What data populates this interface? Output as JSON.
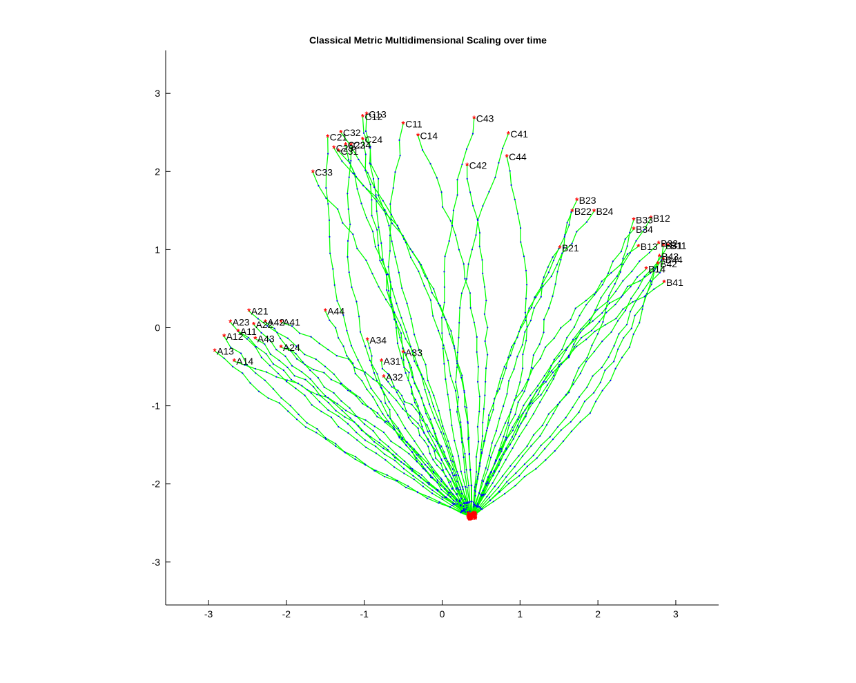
{
  "window": {
    "title": ""
  },
  "chart_data": {
    "type": "scatter",
    "title": "Classical Metric Multidimensional Scaling over time",
    "xlabel": "",
    "ylabel": "",
    "xlim": [
      -3.55,
      3.55
    ],
    "ylim": [
      -3.55,
      3.55
    ],
    "xticks": [
      -3,
      -2,
      -1,
      0,
      1,
      2,
      3
    ],
    "yticks": [
      -3,
      -2,
      -1,
      0,
      1,
      2,
      3
    ],
    "grid": false,
    "legend": "none",
    "start_point": [
      0.38,
      -2.43
    ],
    "colors": {
      "trajectory": "#00ff00",
      "dots": "#0000ff",
      "endpoint": "#ff0000",
      "axis": "#000000"
    },
    "labeled_points": [
      {
        "label": "A21",
        "x": -2.48,
        "y": 0.21
      },
      {
        "label": "A23",
        "x": -2.72,
        "y": 0.07
      },
      {
        "label": "A42",
        "x": -2.27,
        "y": 0.07
      },
      {
        "label": "A41",
        "x": -2.07,
        "y": 0.07
      },
      {
        "label": "A22",
        "x": -2.42,
        "y": 0.04
      },
      {
        "label": "A11",
        "x": -2.62,
        "y": -0.05
      },
      {
        "label": "A12",
        "x": -2.8,
        "y": -0.11
      },
      {
        "label": "A43",
        "x": -2.4,
        "y": -0.14
      },
      {
        "label": "A24",
        "x": -2.07,
        "y": -0.25
      },
      {
        "label": "A13",
        "x": -2.92,
        "y": -0.3
      },
      {
        "label": "A14",
        "x": -2.67,
        "y": -0.43
      },
      {
        "label": "A44",
        "x": -1.5,
        "y": 0.21
      },
      {
        "label": "A34",
        "x": -0.96,
        "y": -0.16
      },
      {
        "label": "A33",
        "x": -0.5,
        "y": -0.32
      },
      {
        "label": "A31",
        "x": -0.78,
        "y": -0.43
      },
      {
        "label": "A32",
        "x": -0.75,
        "y": -0.63
      },
      {
        "label": "C13",
        "x": -0.97,
        "y": 2.73
      },
      {
        "label": "C12",
        "x": -1.02,
        "y": 2.7
      },
      {
        "label": "C11",
        "x": -0.5,
        "y": 2.61
      },
      {
        "label": "C14",
        "x": -0.31,
        "y": 2.46
      },
      {
        "label": "C43",
        "x": 0.41,
        "y": 2.68
      },
      {
        "label": "C41",
        "x": 0.85,
        "y": 2.48
      },
      {
        "label": "C44",
        "x": 0.83,
        "y": 2.19
      },
      {
        "label": "C42",
        "x": 0.32,
        "y": 2.08
      },
      {
        "label": "C32",
        "x": -1.3,
        "y": 2.5
      },
      {
        "label": "C21",
        "x": -1.47,
        "y": 2.44
      },
      {
        "label": "C24",
        "x": -1.02,
        "y": 2.41
      },
      {
        "label": "C22",
        "x": -1.24,
        "y": 2.34
      },
      {
        "label": "C34",
        "x": -1.17,
        "y": 2.34
      },
      {
        "label": "C23",
        "x": -1.39,
        "y": 2.3
      },
      {
        "label": "C31",
        "x": -1.33,
        "y": 2.26
      },
      {
        "label": "C33",
        "x": -1.66,
        "y": 1.99
      },
      {
        "label": "B23",
        "x": 1.73,
        "y": 1.63
      },
      {
        "label": "B22",
        "x": 1.67,
        "y": 1.49
      },
      {
        "label": "B24",
        "x": 1.95,
        "y": 1.49
      },
      {
        "label": "B12",
        "x": 2.68,
        "y": 1.4
      },
      {
        "label": "B33",
        "x": 2.46,
        "y": 1.38
      },
      {
        "label": "B34",
        "x": 2.46,
        "y": 1.26
      },
      {
        "label": "B21",
        "x": 1.51,
        "y": 1.02
      },
      {
        "label": "B32",
        "x": 2.78,
        "y": 1.08
      },
      {
        "label": "B31",
        "x": 2.84,
        "y": 1.05
      },
      {
        "label": "B11",
        "x": 2.9,
        "y": 1.05
      },
      {
        "label": "B13",
        "x": 2.52,
        "y": 1.04
      },
      {
        "label": "B43",
        "x": 2.79,
        "y": 0.91
      },
      {
        "label": "B44",
        "x": 2.84,
        "y": 0.87
      },
      {
        "label": "B42",
        "x": 2.77,
        "y": 0.82
      },
      {
        "label": "B14",
        "x": 2.62,
        "y": 0.75
      },
      {
        "label": "B41",
        "x": 2.85,
        "y": 0.58
      }
    ]
  }
}
